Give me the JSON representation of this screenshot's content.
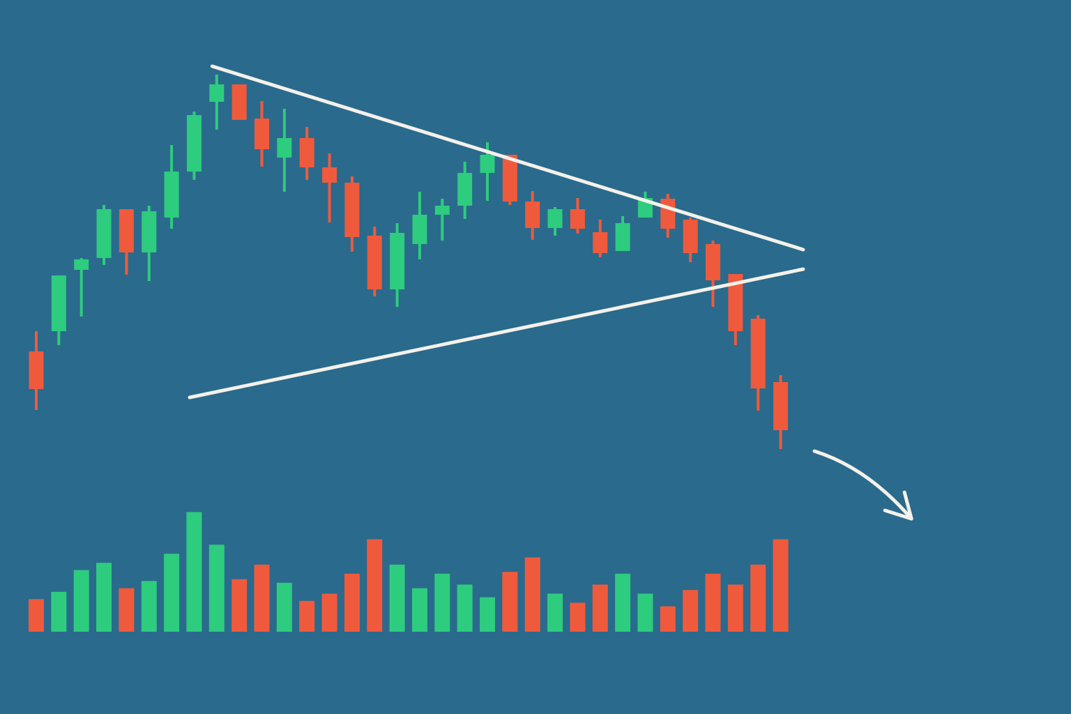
{
  "chart_data": {
    "type": "candlestick",
    "title": "",
    "xlabel": "",
    "ylabel": "",
    "ylim": [
      0,
      1000
    ],
    "volume_ylim": [
      0,
      200
    ],
    "colors": {
      "background": "#2a6a8c",
      "up": "#2ecc7e",
      "down": "#f05a3c",
      "trendline": "#f4f1ea"
    },
    "series": [
      {
        "open": 496,
        "high": 525,
        "low": 412,
        "close": 442
      },
      {
        "open": 525,
        "high": 598,
        "low": 505,
        "close": 605
      },
      {
        "open": 613,
        "high": 630,
        "low": 546,
        "close": 628
      },
      {
        "open": 630,
        "high": 706,
        "low": 620,
        "close": 700
      },
      {
        "open": 700,
        "high": 698,
        "low": 606,
        "close": 638
      },
      {
        "open": 638,
        "high": 705,
        "low": 597,
        "close": 697
      },
      {
        "open": 688,
        "high": 792,
        "low": 672,
        "close": 754
      },
      {
        "open": 754,
        "high": 840,
        "low": 742,
        "close": 835
      },
      {
        "open": 854,
        "high": 893,
        "low": 814,
        "close": 879
      },
      {
        "open": 879,
        "high": 878,
        "low": 830,
        "close": 828
      },
      {
        "open": 830,
        "high": 855,
        "low": 761,
        "close": 786
      },
      {
        "open": 774,
        "high": 844,
        "low": 725,
        "close": 802
      },
      {
        "open": 802,
        "high": 818,
        "low": 742,
        "close": 760
      },
      {
        "open": 760,
        "high": 780,
        "low": 681,
        "close": 738
      },
      {
        "open": 738,
        "high": 747,
        "low": 639,
        "close": 660
      },
      {
        "open": 662,
        "high": 675,
        "low": 575,
        "close": 585
      },
      {
        "open": 585,
        "high": 680,
        "low": 560,
        "close": 666
      },
      {
        "open": 650,
        "high": 725,
        "low": 628,
        "close": 692
      },
      {
        "open": 692,
        "high": 715,
        "low": 655,
        "close": 705
      },
      {
        "open": 705,
        "high": 768,
        "low": 686,
        "close": 752
      },
      {
        "open": 752,
        "high": 796,
        "low": 712,
        "close": 778
      },
      {
        "open": 778,
        "high": 776,
        "low": 706,
        "close": 711
      },
      {
        "open": 711,
        "high": 726,
        "low": 656,
        "close": 673
      },
      {
        "open": 673,
        "high": 703,
        "low": 662,
        "close": 700
      },
      {
        "open": 700,
        "high": 716,
        "low": 665,
        "close": 672
      },
      {
        "open": 667,
        "high": 685,
        "low": 631,
        "close": 637
      },
      {
        "open": 640,
        "high": 690,
        "low": 644,
        "close": 680
      },
      {
        "open": 688,
        "high": 725,
        "low": 695,
        "close": 716
      },
      {
        "open": 715,
        "high": 722,
        "low": 659,
        "close": 672
      },
      {
        "open": 685,
        "high": 688,
        "low": 624,
        "close": 637
      },
      {
        "open": 650,
        "high": 655,
        "low": 560,
        "close": 598
      },
      {
        "open": 607,
        "high": 605,
        "low": 505,
        "close": 525
      },
      {
        "open": 543,
        "high": 548,
        "low": 411,
        "close": 443
      },
      {
        "open": 452,
        "high": 462,
        "low": 356,
        "close": 383
      }
    ],
    "volume": [
      18,
      22,
      34,
      38,
      24,
      28,
      43,
      66,
      48,
      29,
      37,
      27,
      17,
      21,
      32,
      51,
      37,
      24,
      32,
      26,
      19,
      33,
      41,
      21,
      16,
      26,
      32,
      21,
      14,
      23,
      32,
      26,
      37,
      51
    ],
    "trendlines": [
      {
        "from": [
          7.8,
          905
        ],
        "to": [
          34.0,
          642
        ]
      },
      {
        "from": [
          6.8,
          430
        ],
        "to": [
          34.0,
          614
        ]
      }
    ],
    "arrow": {
      "from": [
        34.5,
        353
      ],
      "to": [
        38.8,
        256
      ]
    }
  }
}
